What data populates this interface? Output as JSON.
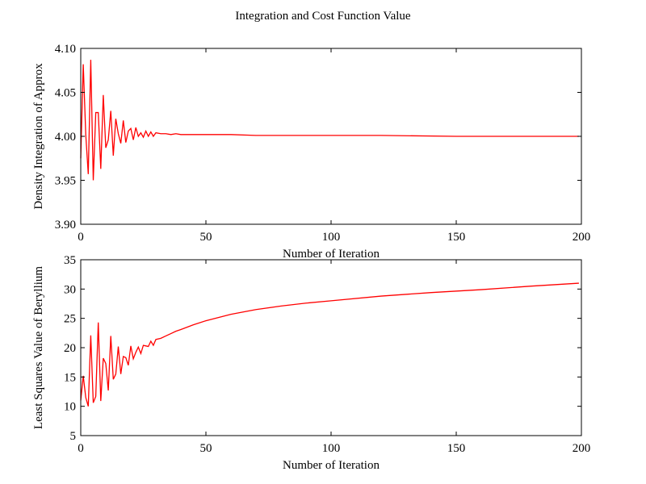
{
  "figure": {
    "title": "Integration and Cost Function Value"
  },
  "chart_data": [
    {
      "type": "line",
      "title": "",
      "xlabel": "Number of Iteration",
      "ylabel": "Density Integration of Approx",
      "xlim": [
        0,
        200
      ],
      "ylim": [
        3.9,
        4.1
      ],
      "xticks": [
        "0",
        "50",
        "100",
        "150",
        "200"
      ],
      "yticks": [
        "3.90",
        "3.95",
        "4.00",
        "4.05",
        "4.10"
      ],
      "grid": false,
      "series": [
        {
          "color": "#ff0000",
          "x": [
            0,
            1,
            2,
            3,
            4,
            5,
            6,
            7,
            8,
            9,
            10,
            11,
            12,
            13,
            14,
            15,
            16,
            17,
            18,
            19,
            20,
            21,
            22,
            23,
            24,
            25,
            26,
            27,
            28,
            29,
            30,
            32,
            34,
            36,
            38,
            40,
            45,
            50,
            60,
            70,
            80,
            100,
            120,
            150,
            175,
            199
          ],
          "y": [
            3.975,
            4.082,
            4.002,
            3.957,
            4.087,
            3.95,
            4.027,
            4.027,
            3.963,
            4.047,
            3.987,
            3.996,
            4.029,
            3.978,
            4.02,
            4.003,
            3.992,
            4.018,
            3.993,
            4.006,
            4.009,
            3.996,
            4.01,
            4.0,
            4.004,
            3.999,
            4.006,
            4.0,
            4.005,
            4.0,
            4.004,
            4.003,
            4.003,
            4.002,
            4.003,
            4.002,
            4.002,
            4.002,
            4.002,
            4.001,
            4.001,
            4.001,
            4.001,
            4.0,
            4.0,
            4.0
          ]
        }
      ]
    },
    {
      "type": "line",
      "title": "",
      "xlabel": "Number of Iteration",
      "ylabel": "Least Squares Value of Beryllium",
      "xlim": [
        0,
        200
      ],
      "ylim": [
        5,
        35
      ],
      "xticks": [
        "0",
        "50",
        "100",
        "150",
        "200"
      ],
      "yticks": [
        "5",
        "10",
        "15",
        "20",
        "25",
        "30",
        "35"
      ],
      "grid": false,
      "series": [
        {
          "color": "#ff0000",
          "x": [
            0,
            1,
            2,
            3,
            4,
            5,
            6,
            7,
            8,
            9,
            10,
            11,
            12,
            13,
            14,
            15,
            16,
            17,
            18,
            19,
            20,
            21,
            22,
            23,
            24,
            25,
            26,
            27,
            28,
            29,
            30,
            32,
            34,
            36,
            38,
            40,
            45,
            50,
            60,
            70,
            80,
            90,
            100,
            120,
            140,
            160,
            180,
            199
          ],
          "y": [
            11.0,
            15.2,
            11.5,
            10.0,
            22.1,
            10.6,
            11.7,
            24.3,
            10.9,
            18.2,
            17.3,
            12.7,
            22.0,
            14.6,
            15.5,
            20.2,
            15.5,
            18.5,
            18.3,
            17.0,
            20.3,
            18.1,
            19.2,
            20.1,
            19.0,
            20.4,
            20.3,
            20.2,
            21.1,
            20.4,
            21.4,
            21.6,
            22.0,
            22.4,
            22.8,
            23.1,
            23.9,
            24.6,
            25.7,
            26.5,
            27.1,
            27.6,
            28.0,
            28.8,
            29.4,
            29.9,
            30.5,
            31.0
          ]
        }
      ]
    }
  ]
}
